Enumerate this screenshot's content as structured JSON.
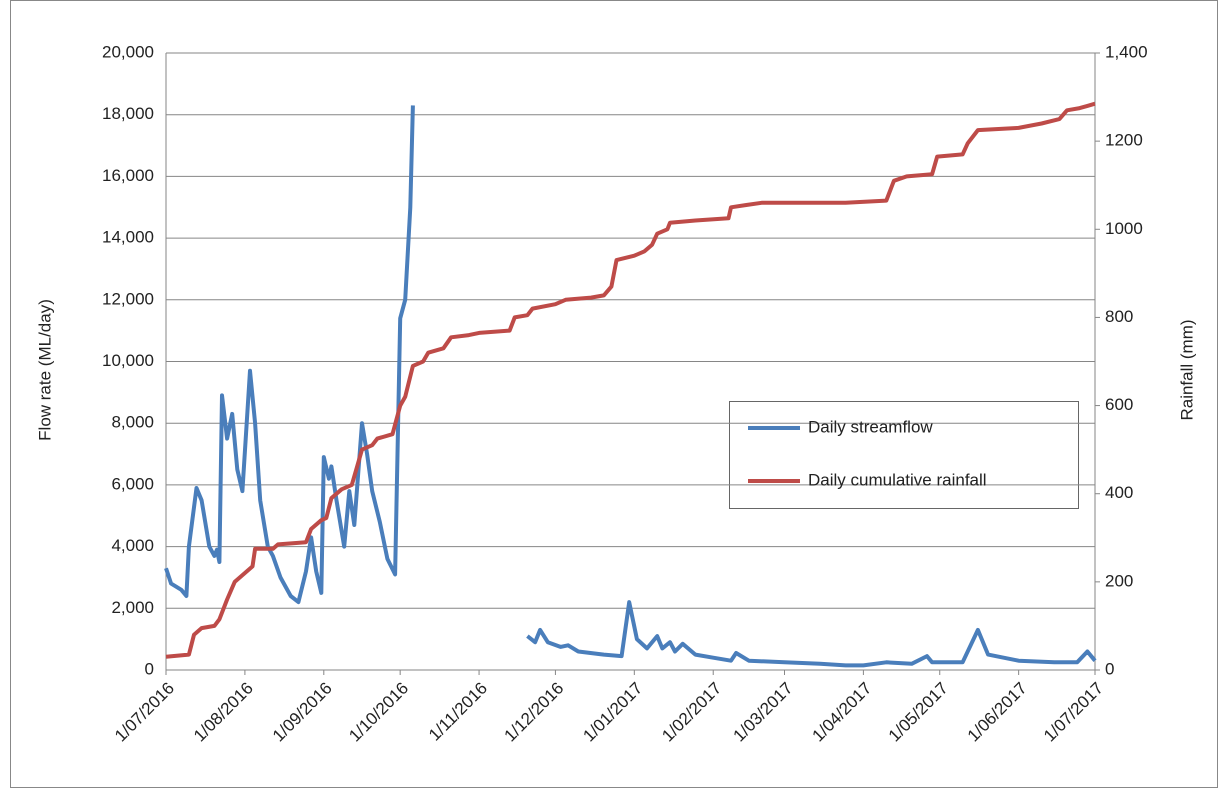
{
  "chart_data": {
    "type": "line",
    "ylabel": "Flow rate (ML/day)",
    "y2label": "Rainfall  (mm)",
    "xlim": [
      "2016-07-01",
      "2017-07-01"
    ],
    "xticks": [
      {
        "value": "2016-07-01",
        "label": "1/07/2016"
      },
      {
        "value": "2016-08-01",
        "label": "1/08/2016"
      },
      {
        "value": "2016-09-01",
        "label": "1/09/2016"
      },
      {
        "value": "2016-10-01",
        "label": "1/10/2016"
      },
      {
        "value": "2016-11-01",
        "label": "1/11/2016"
      },
      {
        "value": "2016-12-01",
        "label": "1/12/2016"
      },
      {
        "value": "2017-01-01",
        "label": "1/01/2017"
      },
      {
        "value": "2017-02-01",
        "label": "1/02/2017"
      },
      {
        "value": "2017-03-01",
        "label": "1/03/2017"
      },
      {
        "value": "2017-04-01",
        "label": "1/04/2017"
      },
      {
        "value": "2017-05-01",
        "label": "1/05/2017"
      },
      {
        "value": "2017-06-01",
        "label": "1/06/2017"
      },
      {
        "value": "2017-07-01",
        "label": "1/07/2017"
      }
    ],
    "ylim": [
      0,
      20000
    ],
    "yticks": [
      0,
      {
        "value": 2000,
        "label": "2,000"
      },
      {
        "value": 4000,
        "label": "4,000"
      },
      {
        "value": 6000,
        "label": "6,000"
      },
      {
        "value": 8000,
        "label": "8,000"
      },
      {
        "value": 10000,
        "label": "10,000"
      },
      {
        "value": 12000,
        "label": "12,000"
      },
      {
        "value": 14000,
        "label": "14,000"
      },
      {
        "value": 16000,
        "label": "16,000"
      },
      {
        "value": 18000,
        "label": "18,000"
      },
      {
        "value": 20000,
        "label": "20,000"
      }
    ],
    "y2lim": [
      0,
      1400
    ],
    "y2ticks": [
      0,
      200,
      400,
      600,
      800,
      1000,
      1200,
      {
        "value": 1400,
        "label": "1,400"
      }
    ],
    "grid": true,
    "legend": "right",
    "series": [
      {
        "name": "Daily streamflow",
        "color": "#4a7ebb",
        "x": [
          "2016-07-01",
          "2016-07-03",
          "2016-07-07",
          "2016-07-09",
          "2016-07-10",
          "2016-07-13",
          "2016-07-15",
          "2016-07-18",
          "2016-07-20",
          "2016-07-21",
          "2016-07-22",
          "2016-07-23",
          "2016-07-25",
          "2016-07-27",
          "2016-07-29",
          "2016-07-31",
          "2016-08-03",
          "2016-08-05",
          "2016-08-07",
          "2016-08-10",
          "2016-08-12",
          "2016-08-15",
          "2016-08-19",
          "2016-08-22",
          "2016-08-25",
          "2016-08-27",
          "2016-08-29",
          "2016-08-31",
          "2016-09-01",
          "2016-09-03",
          "2016-09-04",
          "2016-09-06",
          "2016-09-09",
          "2016-09-11",
          "2016-09-13",
          "2016-09-16",
          "2016-09-18",
          "2016-09-20",
          "2016-09-23",
          "2016-09-26",
          "2016-09-29",
          "2016-10-01",
          "2016-10-03",
          "2016-10-05",
          "2016-10-06",
          "2016-11-01",
          "2016-11-20",
          "2016-11-23",
          "2016-11-25",
          "2016-11-28",
          "2016-12-03",
          "2016-12-06",
          "2016-12-10",
          "2016-12-20",
          "2016-12-27",
          "2016-12-30",
          "2017-01-02",
          "2017-01-06",
          "2017-01-10",
          "2017-01-12",
          "2017-01-15",
          "2017-01-17",
          "2017-01-20",
          "2017-01-25",
          "2017-02-01",
          "2017-02-08",
          "2017-02-10",
          "2017-02-15",
          "2017-03-01",
          "2017-03-15",
          "2017-03-25",
          "2017-04-01",
          "2017-04-10",
          "2017-04-20",
          "2017-04-26",
          "2017-04-28",
          "2017-05-10",
          "2017-05-16",
          "2017-05-20",
          "2017-06-01",
          "2017-06-15",
          "2017-06-24",
          "2017-06-28",
          "2017-06-30",
          "2017-07-01"
        ],
        "values": [
          3300,
          2800,
          2600,
          2400,
          4000,
          5900,
          5500,
          4000,
          3700,
          3900,
          3500,
          8900,
          7500,
          8300,
          6500,
          5800,
          9700,
          8000,
          5500,
          4000,
          3700,
          3000,
          2400,
          2200,
          3200,
          4300,
          3200,
          2500,
          6900,
          6200,
          6600,
          5500,
          4000,
          5800,
          4700,
          8000,
          7000,
          5800,
          4800,
          3600,
          3100,
          11400,
          12000,
          15000,
          18300,
          null,
          1100,
          900,
          1300,
          900,
          750,
          800,
          600,
          500,
          450,
          2200,
          1000,
          700,
          1100,
          700,
          900,
          600,
          850,
          500,
          400,
          300,
          550,
          300,
          250,
          200,
          150,
          150,
          250,
          200,
          450,
          250,
          250,
          1300,
          500,
          300,
          250,
          250,
          600,
          400,
          300
        ]
      },
      {
        "name": "Daily cumulative rainfall",
        "color": "#be4b48",
        "axis": "y2",
        "x": [
          "2016-07-01",
          "2016-07-10",
          "2016-07-12",
          "2016-07-15",
          "2016-07-20",
          "2016-07-22",
          "2016-07-25",
          "2016-07-28",
          "2016-08-01",
          "2016-08-04",
          "2016-08-05",
          "2016-08-12",
          "2016-08-14",
          "2016-08-25",
          "2016-08-27",
          "2016-08-31",
          "2016-09-02",
          "2016-09-04",
          "2016-09-08",
          "2016-09-12",
          "2016-09-14",
          "2016-09-16",
          "2016-09-20",
          "2016-09-22",
          "2016-09-28",
          "2016-10-01",
          "2016-10-03",
          "2016-10-06",
          "2016-10-10",
          "2016-10-12",
          "2016-10-18",
          "2016-10-21",
          "2016-10-28",
          "2016-11-01",
          "2016-11-13",
          "2016-11-15",
          "2016-11-20",
          "2016-11-22",
          "2016-12-01",
          "2016-12-05",
          "2016-12-15",
          "2016-12-20",
          "2016-12-23",
          "2016-12-25",
          "2017-01-01",
          "2017-01-05",
          "2017-01-08",
          "2017-01-10",
          "2017-01-14",
          "2017-01-15",
          "2017-01-25",
          "2017-02-07",
          "2017-02-08",
          "2017-02-14",
          "2017-02-20",
          "2017-03-10",
          "2017-03-25",
          "2017-04-10",
          "2017-04-13",
          "2017-04-18",
          "2017-04-28",
          "2017-04-30",
          "2017-05-10",
          "2017-05-12",
          "2017-05-16",
          "2017-06-01",
          "2017-06-10",
          "2017-06-17",
          "2017-06-20",
          "2017-06-25",
          "2017-06-28",
          "2017-07-01"
        ],
        "values": [
          30,
          35,
          80,
          95,
          100,
          115,
          160,
          200,
          220,
          235,
          275,
          275,
          285,
          290,
          320,
          340,
          345,
          390,
          410,
          420,
          460,
          500,
          510,
          525,
          535,
          600,
          620,
          690,
          700,
          720,
          730,
          755,
          760,
          765,
          770,
          800,
          805,
          820,
          830,
          840,
          845,
          850,
          870,
          930,
          940,
          950,
          965,
          990,
          1000,
          1015,
          1020,
          1025,
          1050,
          1055,
          1060,
          1060,
          1060,
          1065,
          1110,
          1120,
          1125,
          1165,
          1170,
          1195,
          1225,
          1230,
          1240,
          1250,
          1270,
          1275,
          1280,
          1285
        ]
      }
    ]
  }
}
